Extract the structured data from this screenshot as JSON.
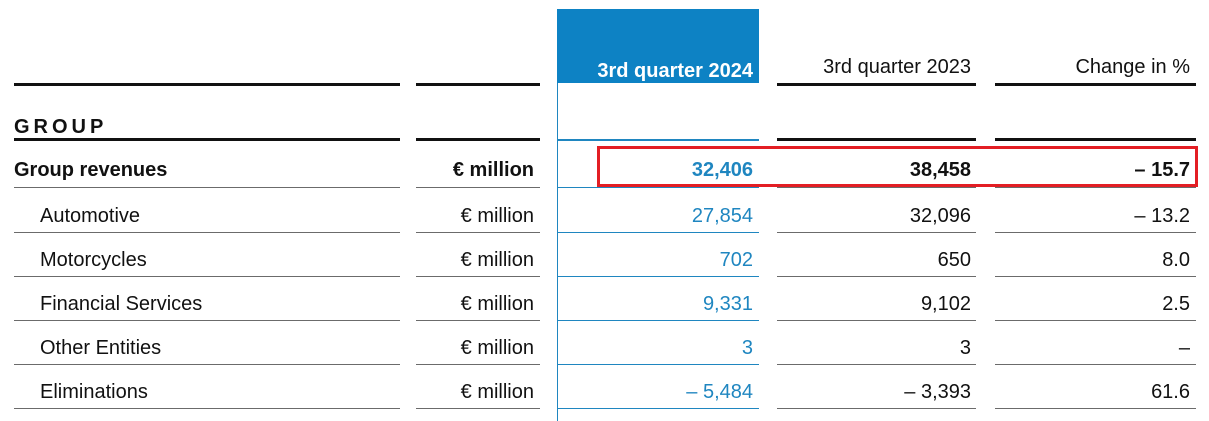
{
  "headers": {
    "col1": "3rd quarter 2024",
    "col2": "3rd quarter 2023",
    "col3": "Change in %"
  },
  "section_title": "GROUP",
  "rows": [
    {
      "label": "Group revenues",
      "unit": "€ million",
      "q2024": "32,406",
      "q2023": "38,458",
      "change": "– 15.7"
    },
    {
      "label": "Automotive",
      "unit": "€ million",
      "q2024": "27,854",
      "q2023": "32,096",
      "change": "– 13.2"
    },
    {
      "label": "Motorcycles",
      "unit": "€ million",
      "q2024": "702",
      "q2023": "650",
      "change": "8.0"
    },
    {
      "label": "Financial Services",
      "unit": "€ million",
      "q2024": "9,331",
      "q2023": "9,102",
      "change": "2.5"
    },
    {
      "label": "Other Entities",
      "unit": "€ million",
      "q2024": "3",
      "q2023": "3",
      "change": "–"
    },
    {
      "label": "Eliminations",
      "unit": "€ million",
      "q2024": "– 5,484",
      "q2023": "– 3,393",
      "change": "61.6"
    }
  ],
  "colors": {
    "accent": "#0d82c4",
    "highlight": "#e31e24",
    "text": "#111111"
  }
}
